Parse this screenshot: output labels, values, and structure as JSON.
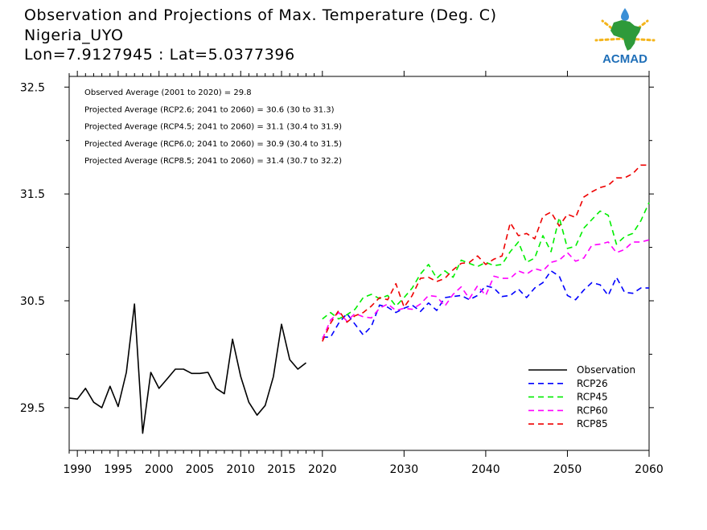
{
  "title": {
    "line1": "Observation and Projections of Max. Temperature (Deg. C)",
    "line2": "Nigeria_UYO",
    "line3": "Lon=7.9127945 : Lat=5.0377396"
  },
  "logo": {
    "text": "ACMAD",
    "colors": {
      "africa": "#2e9a3a",
      "sun": "#f4b41a",
      "drop": "#3b8fd6",
      "text": "#1f6fb8"
    }
  },
  "annotations": [
    "Observed Average (2001 to 2020) = 29.8",
    "Projected Average (RCP2.6; 2041 to 2060) = 30.6 (30 to 31.3)",
    "Projected Average (RCP4.5; 2041 to 2060) = 31.1 (30.4 to 31.9)",
    "Projected Average (RCP6.0; 2041 to 2060) = 30.9 (30.4 to 31.5)",
    "Projected Average (RCP8.5; 2041 to 2060) = 31.4 (30.7 to 32.2)"
  ],
  "chart_data": {
    "type": "line",
    "xlim": [
      1989,
      2060
    ],
    "ylim": [
      29.1,
      32.6
    ],
    "x_ticks_left": [
      1990,
      1995,
      2000,
      2005,
      2010,
      2015,
      2020
    ],
    "x_ticks_right": [
      2030,
      2040,
      2050,
      2060
    ],
    "y_ticks": [
      29.5,
      30.5,
      31.5,
      32.5
    ],
    "legend_position": "bottom-right",
    "series": [
      {
        "name": "Observation",
        "color": "#000000",
        "dashed": false,
        "x_start": 1989,
        "values": [
          29.59,
          29.58,
          29.68,
          29.55,
          29.5,
          29.7,
          29.51,
          29.83,
          30.47,
          29.26,
          29.83,
          29.68,
          29.77,
          29.86,
          29.86,
          29.82,
          29.82,
          29.83,
          29.68,
          29.63,
          30.14,
          29.79,
          29.55,
          29.43,
          29.52,
          29.79,
          30.28,
          29.95,
          29.86,
          29.92
        ]
      },
      {
        "name": "RCP26",
        "color": "#0000ff",
        "dashed": true,
        "x_start": 2020,
        "values": [
          30.16,
          30.16,
          30.29,
          30.38,
          30.28,
          30.18,
          30.26,
          30.46,
          30.44,
          30.39,
          30.43,
          30.46,
          30.4,
          30.48,
          30.41,
          30.53,
          30.54,
          30.55,
          30.51,
          30.55,
          30.64,
          30.62,
          30.54,
          30.55,
          30.61,
          30.53,
          30.62,
          30.67,
          30.78,
          30.73,
          30.55,
          30.51,
          30.6,
          30.67,
          30.65,
          30.55,
          30.72,
          30.58,
          30.57,
          30.62,
          30.62
        ]
      },
      {
        "name": "RCP45",
        "color": "#00ee00",
        "dashed": true,
        "x_start": 2020,
        "values": [
          30.33,
          30.39,
          30.33,
          30.37,
          30.42,
          30.53,
          30.56,
          30.52,
          30.55,
          30.45,
          30.53,
          30.62,
          30.75,
          30.84,
          30.71,
          30.78,
          30.72,
          30.88,
          30.85,
          30.82,
          30.86,
          30.83,
          30.84,
          30.96,
          31.05,
          30.86,
          30.9,
          31.11,
          30.96,
          31.28,
          30.99,
          31.01,
          31.18,
          31.26,
          31.34,
          31.3,
          31.03,
          31.1,
          31.13,
          31.25,
          31.42
        ]
      },
      {
        "name": "RCP60",
        "color": "#ff00ff",
        "dashed": true,
        "x_start": 2020,
        "values": [
          30.14,
          30.32,
          30.39,
          30.31,
          30.38,
          30.35,
          30.34,
          30.43,
          30.47,
          30.41,
          30.43,
          30.42,
          30.47,
          30.55,
          30.54,
          30.45,
          30.56,
          30.63,
          30.52,
          30.64,
          30.55,
          30.73,
          30.71,
          30.71,
          30.78,
          30.75,
          30.8,
          30.78,
          30.86,
          30.88,
          30.95,
          30.87,
          30.9,
          31.02,
          31.03,
          31.05,
          30.95,
          30.98,
          31.05,
          31.05,
          31.07
        ]
      },
      {
        "name": "RCP85",
        "color": "#ee0000",
        "dashed": true,
        "x_start": 2020,
        "values": [
          30.12,
          30.29,
          30.41,
          30.3,
          30.36,
          30.39,
          30.45,
          30.53,
          30.51,
          30.66,
          30.44,
          30.55,
          30.71,
          30.72,
          30.68,
          30.71,
          30.79,
          30.85,
          30.86,
          30.92,
          30.84,
          30.89,
          30.92,
          31.23,
          31.11,
          31.13,
          31.08,
          31.29,
          31.33,
          31.2,
          31.31,
          31.28,
          31.47,
          31.52,
          31.56,
          31.58,
          31.65,
          31.65,
          31.69,
          31.77,
          31.77
        ]
      }
    ]
  }
}
